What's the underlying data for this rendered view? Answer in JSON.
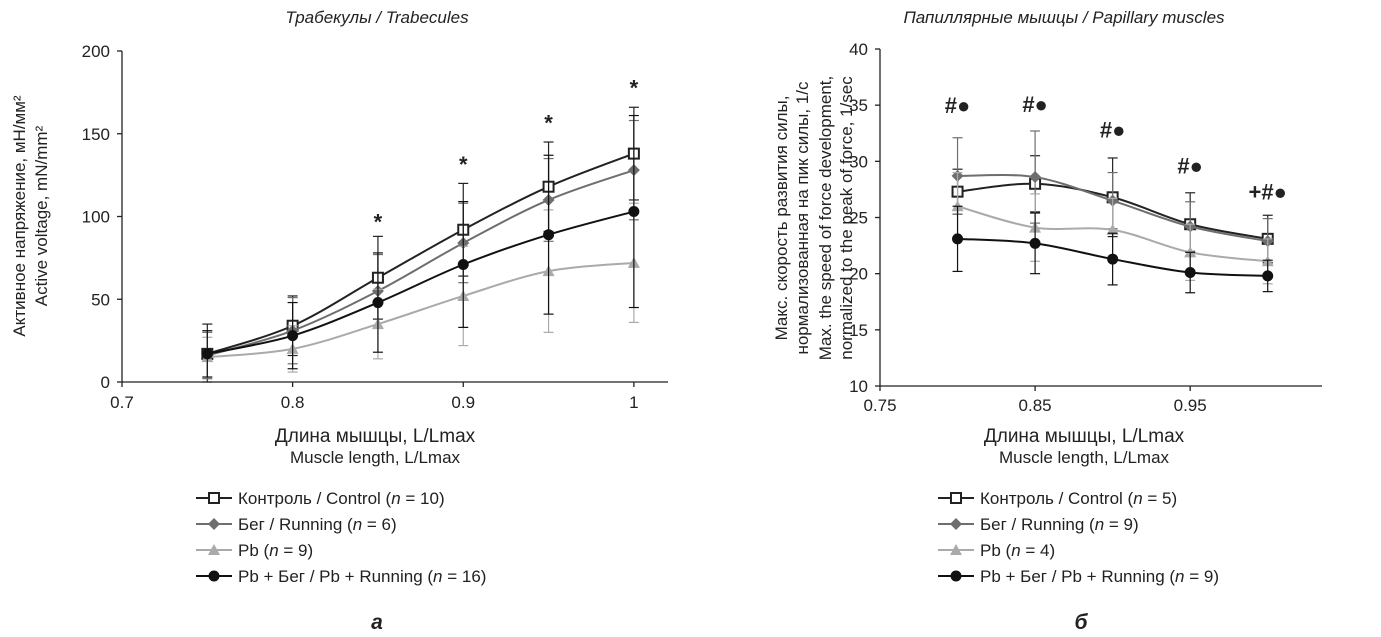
{
  "chart_data": [
    {
      "type": "line",
      "panel_label": "а",
      "title": "Трабекулы / Trabecules",
      "xlabel": "Длина мышцы, L/Lmax",
      "xlabel_en": "Muscle length, L/Lmax",
      "ylabel": "Активное напряжение, мН/мм²",
      "ylabel_en": "Active voltage, mN/mm²",
      "xlim": [
        0.7,
        1.02
      ],
      "ylim": [
        0,
        200
      ],
      "x_ticks": [
        "0.7",
        "0.8",
        "0.9",
        "1"
      ],
      "y_ticks": [
        "0",
        "50",
        "100",
        "150",
        "200"
      ],
      "x": [
        0.75,
        0.8,
        0.85,
        0.9,
        0.95,
        1.0
      ],
      "series": [
        {
          "name": "Контроль / Control (n = 10)",
          "legend_prefix": "Контроль / Control (",
          "legend_n": "n",
          "legend_suffix": " = 10)",
          "color": "#222222",
          "marker": "square-open",
          "values": [
            17,
            34,
            63,
            92,
            118,
            138
          ],
          "err": [
            18,
            18,
            25,
            28,
            27,
            28
          ]
        },
        {
          "name": "Бег / Running (n = 6)",
          "legend_prefix": "Бег / Running (",
          "legend_n": "n",
          "legend_suffix": " = 6)",
          "color": "#6e6e6e",
          "marker": "diamond",
          "values": [
            16,
            31,
            55,
            84,
            110,
            128
          ],
          "err": [
            14,
            20,
            22,
            24,
            25,
            30
          ]
        },
        {
          "name": "Pb (n = 9)",
          "legend_prefix": "Pb (",
          "legend_n": "n",
          "legend_suffix": " = 9)",
          "color": "#aaaaaa",
          "marker": "triangle",
          "values": [
            15,
            20,
            35,
            52,
            67,
            72
          ],
          "err": [
            12,
            14,
            21,
            30,
            37,
            36
          ]
        },
        {
          "name": "Pb + Бег / Pb + Running (n = 16)",
          "legend_prefix": "Pb + Бег / Pb + Running (",
          "legend_n": "n",
          "legend_suffix": " = 16)",
          "color": "#111111",
          "marker": "circle",
          "values": [
            17,
            28,
            48,
            71,
            89,
            103
          ],
          "err": [
            14,
            20,
            30,
            38,
            48,
            58
          ]
        }
      ],
      "annotations": [
        {
          "x": 0.85,
          "y": 92,
          "text": "*"
        },
        {
          "x": 0.9,
          "y": 127,
          "text": "*"
        },
        {
          "x": 0.95,
          "y": 152,
          "text": "*"
        },
        {
          "x": 1.0,
          "y": 173,
          "text": "*"
        }
      ]
    },
    {
      "type": "line",
      "panel_label": "б",
      "title": "Папиллярные мышцы / Papillary muscles",
      "xlabel": "Длина мышцы, L/Lmax",
      "xlabel_en": "Muscle length, L/Lmax",
      "ylabel": "Макс. скорость развития силы, нормализованная на пик силы, 1/с",
      "ylabel_line1": "Макс. скорость развития силы,",
      "ylabel_line2": "нормализованная на пик силы, 1/с",
      "ylabel_en": "Max. the speed of force development, normalized to the peak of force, 1/sec",
      "ylabel_en_line1": "Max. the speed of force development,",
      "ylabel_en_line2": "normalized to the peak of force, 1/sec",
      "xlim": [
        0.75,
        1.035
      ],
      "ylim": [
        10,
        40
      ],
      "x_ticks": [
        "0.75",
        "0.85",
        "0.95"
      ],
      "x_tick_values": [
        0.75,
        0.85,
        0.95
      ],
      "y_ticks": [
        "10",
        "15",
        "20",
        "25",
        "30",
        "35",
        "40"
      ],
      "x": [
        0.8,
        0.85,
        0.9,
        0.95,
        1.0
      ],
      "series": [
        {
          "name": "Контроль / Control (n = 5)",
          "legend_prefix": "Контроль / Control (",
          "legend_n": "n",
          "legend_suffix": " = 5)",
          "color": "#222222",
          "marker": "square-open",
          "values": [
            27.3,
            28.0,
            26.8,
            24.4,
            23.1
          ],
          "err": [
            2.0,
            2.5,
            3.5,
            2.8,
            2.1
          ]
        },
        {
          "name": "Бег / Running (n = 9)",
          "legend_prefix": "Бег / Running (",
          "legend_n": "n",
          "legend_suffix": " = 9)",
          "color": "#6e6e6e",
          "marker": "diamond",
          "values": [
            28.7,
            28.6,
            26.5,
            24.2,
            22.9
          ],
          "err": [
            3.4,
            4.1,
            2.5,
            2.2,
            2.0
          ]
        },
        {
          "name": "Pb (n = 4)",
          "legend_prefix": "Pb (",
          "legend_n": "n",
          "legend_suffix": " = 4)",
          "color": "#aaaaaa",
          "marker": "triangle",
          "values": [
            26.0,
            24.1,
            23.9,
            21.9,
            21.1
          ],
          "err": [
            3.0,
            3.0,
            2.8,
            2.5,
            2.0
          ]
        },
        {
          "name": "Pb + Бег / Pb + Running (n = 9)",
          "legend_prefix": "Pb + Бег / Pb + Running (",
          "legend_n": "n",
          "legend_suffix": " = 9)",
          "color": "#111111",
          "marker": "circle",
          "values": [
            23.1,
            22.7,
            21.3,
            20.1,
            19.8
          ],
          "err": [
            2.9,
            2.7,
            2.3,
            1.8,
            1.4
          ]
        }
      ],
      "annotations": [
        {
          "x": 0.8,
          "y": 34.3,
          "text": "#●"
        },
        {
          "x": 0.85,
          "y": 34.4,
          "text": "#●"
        },
        {
          "x": 0.9,
          "y": 32.1,
          "text": "#●"
        },
        {
          "x": 0.95,
          "y": 28.9,
          "text": "#●"
        },
        {
          "x": 1.0,
          "y": 26.6,
          "text": "+#●"
        }
      ]
    }
  ]
}
